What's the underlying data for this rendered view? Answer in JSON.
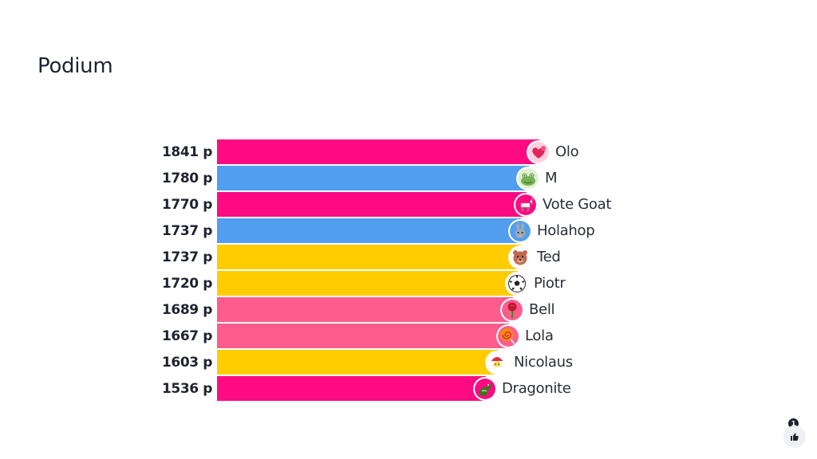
{
  "page": {
    "title": "Podium"
  },
  "reactions": {
    "count": "1",
    "icon": "thumbs-up-icon"
  },
  "leaderboard": [
    {
      "score": "1841 p",
      "name": "Olo",
      "value": 1841,
      "color": "#ff0a82",
      "avatar": "heart-icon"
    },
    {
      "score": "1780 p",
      "name": "M",
      "value": 1780,
      "color": "#529ef0",
      "avatar": "frog-icon"
    },
    {
      "score": "1770 p",
      "name": "Vote Goat",
      "value": 1770,
      "color": "#ff0a82",
      "avatar": "goat-icon"
    },
    {
      "score": "1737 p",
      "name": "Holahop",
      "value": 1737,
      "color": "#529ef0",
      "avatar": "rabbit-icon"
    },
    {
      "score": "1737 p",
      "name": "Ted",
      "value": 1737,
      "color": "#ffcc00",
      "avatar": "bear-icon"
    },
    {
      "score": "1720 p",
      "name": "Piotr",
      "value": 1720,
      "color": "#ffcc00",
      "avatar": "soccer-ball-icon"
    },
    {
      "score": "1689 p",
      "name": "Bell",
      "value": 1689,
      "color": "#ff5c8e",
      "avatar": "rose-icon"
    },
    {
      "score": "1667 p",
      "name": "Lola",
      "value": 1667,
      "color": "#ff5c8e",
      "avatar": "lollipop-icon"
    },
    {
      "score": "1603 p",
      "name": "Nicolaus",
      "value": 1603,
      "color": "#ffcc00",
      "avatar": "santa-icon"
    },
    {
      "score": "1536 p",
      "name": "Dragonite",
      "value": 1536,
      "color": "#ff0a82",
      "avatar": "dragon-icon"
    }
  ]
}
